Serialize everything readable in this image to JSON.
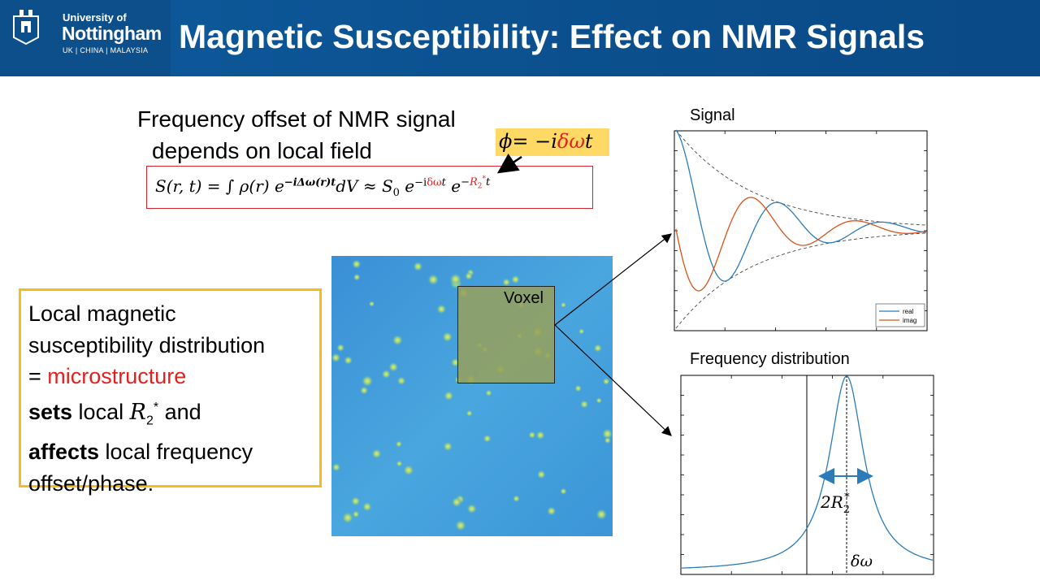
{
  "header": {
    "university_line1": "University of",
    "university_line2": "Nottingham",
    "university_line3": "UK | CHINA | MALAYSIA",
    "title": "Magnetic Susceptibility: Effect on NMR Signals"
  },
  "statement": {
    "line1": "Frequency offset of NMR signal",
    "line2": "depends on local field"
  },
  "equation": {
    "lhs": "S(r, t) = ∫ ρ(r) e",
    "exp1": "−iΔω(r)t",
    "mid": "dV ≈ S",
    "sub0": "0",
    "e2": " e",
    "exp2a": "−i",
    "exp2b": "δω",
    "exp2c": "t",
    "e3": " e",
    "exp3a": "−",
    "exp3b": "R",
    "exp3c": "2",
    "exp3d": "*",
    "exp3e": "t"
  },
  "phase": {
    "lhs": "ϕ= −i",
    "mid": "δω",
    "rhs": "t"
  },
  "info_box": {
    "line1": "Local magnetic",
    "line2": "susceptibility distribution",
    "line3a": "= ",
    "line3b": "microstructure",
    "line4a": "sets",
    "line4b": " local ",
    "line4c": "R",
    "line4d": "2",
    "line4e": "*",
    "line4f": " and",
    "line5a": "affects",
    "line5b": " local frequency",
    "line6": "offset/phase."
  },
  "voxel_label": "Voxel",
  "signal_plot": {
    "label": "Signal",
    "legend": [
      "real",
      "imag"
    ],
    "colors": {
      "real": "#2b7bba",
      "imag": "#d95319",
      "envelope": "#444444"
    }
  },
  "freq_plot": {
    "label": "Frequency distribution",
    "width_label": "2R",
    "width_sub": "2",
    "width_sup": "*",
    "peak_label": "δω",
    "color": "#2b7bba"
  },
  "colors": {
    "header": "#0b4f8d",
    "red": "#e3221f",
    "highlight": "#ffd966",
    "box_border": "#f2be1b",
    "map_blue": "#3d9ad9"
  }
}
